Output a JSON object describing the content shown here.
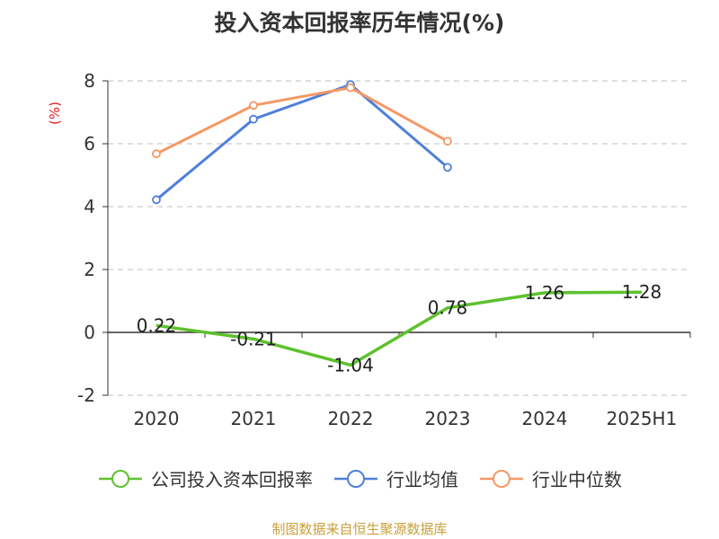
{
  "chart_data": {
    "type": "line",
    "title": "投入资本回报率历年情况(%)",
    "ylabel": "(%)",
    "categories": [
      "2020",
      "2021",
      "2022",
      "2023",
      "2024",
      "2025H1"
    ],
    "ylim": [
      -2,
      8
    ],
    "yticks": [
      -2,
      0,
      2,
      4,
      6,
      8
    ],
    "grid": true,
    "legend_position": "bottom",
    "series": [
      {
        "name": "公司投入资本回报率",
        "color": "#5dc12d",
        "show_labels": true,
        "values": [
          0.22,
          -0.21,
          -1.04,
          0.78,
          1.26,
          1.28
        ]
      },
      {
        "name": "行业均值",
        "color": "#4f7fdb",
        "show_labels": false,
        "values": [
          4.22,
          6.78,
          7.88,
          5.25,
          null,
          null
        ]
      },
      {
        "name": "行业中位数",
        "color": "#f59864",
        "show_labels": false,
        "values": [
          5.68,
          7.22,
          7.78,
          6.08,
          null,
          null
        ]
      }
    ]
  },
  "source": "制图数据来自恒生聚源数据库"
}
